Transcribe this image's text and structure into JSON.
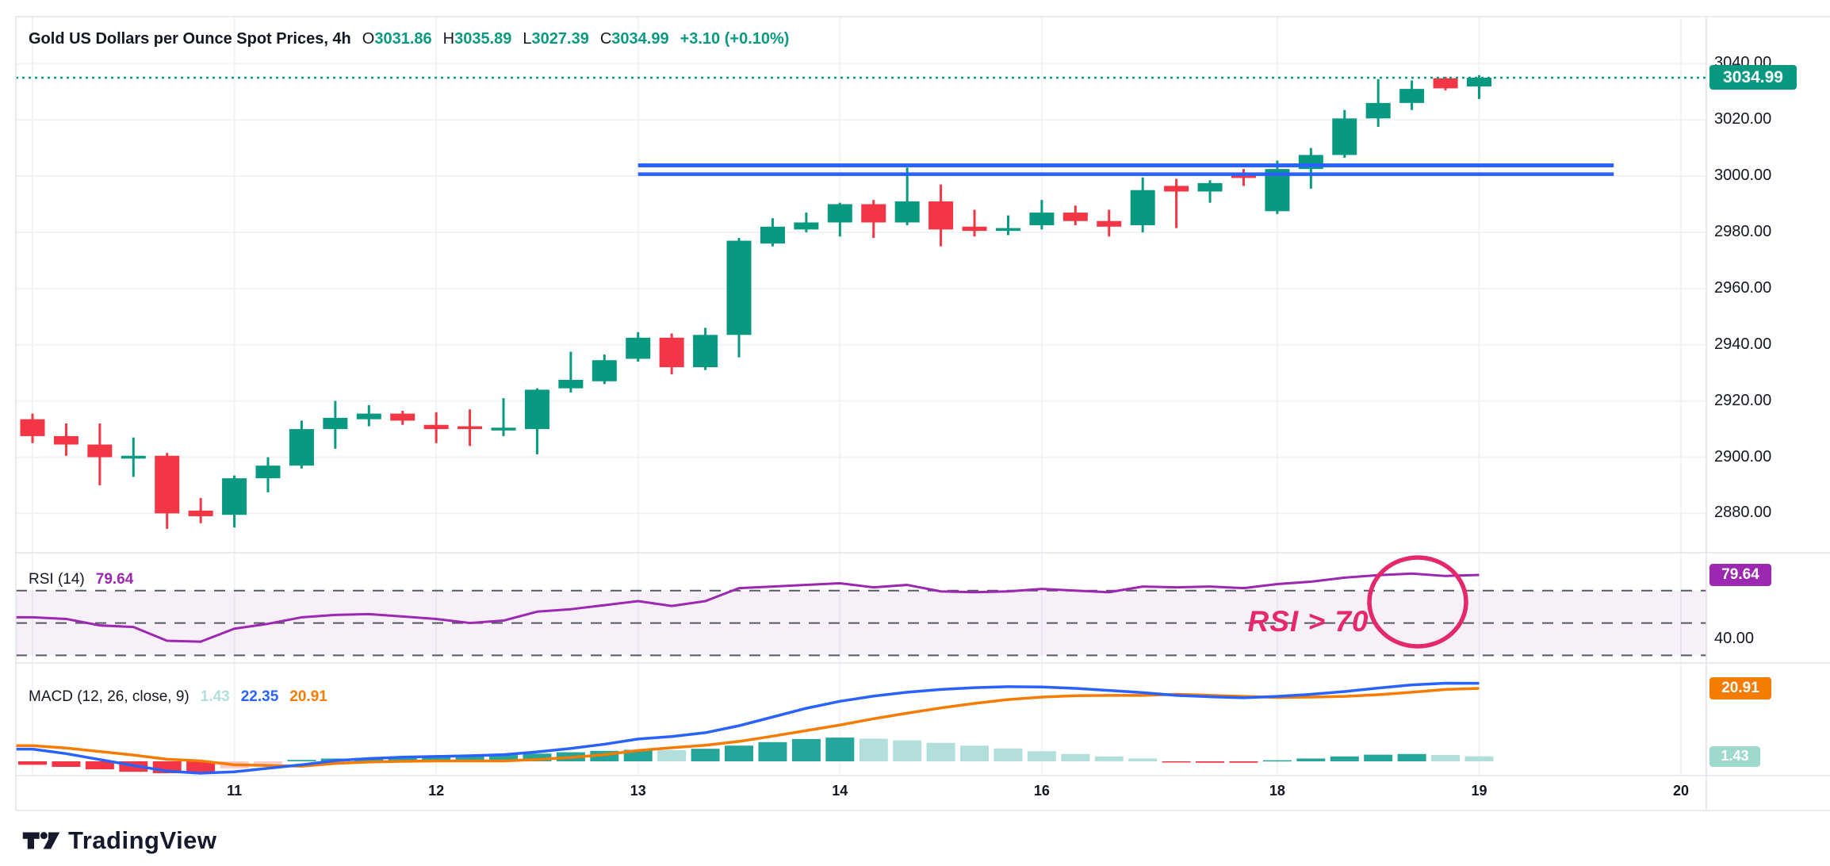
{
  "header": {
    "title": "Gold US Dollars per Ounce Spot Prices, 4h",
    "ohlc": {
      "o_label": "O",
      "o": "3031.86",
      "h_label": "H",
      "h": "3035.89",
      "l_label": "L",
      "l": "3027.39",
      "c_label": "C",
      "c": "3034.99",
      "change": "+3.10 (+0.10%)"
    }
  },
  "colors": {
    "up": "#089981",
    "down": "#F23645",
    "text": "#131722",
    "grid": "#F1F2F6",
    "border": "#E0E3EB",
    "value_green": "#089981",
    "resistance": "#2962FF",
    "last_price_line": "#089981",
    "price_badge": "#089981",
    "rsi_line": "#9C27B0",
    "rsi_badge": "#9C27B0",
    "rsi_band_fill": "rgba(149,66,183,0.08)",
    "rsi_dash": "#565A64",
    "macd_line": "#2962FF",
    "signal_line": "#F57C00",
    "hist_rise_pos": "#26A69A",
    "hist_fall_pos": "#B2DFDB",
    "hist_fall_neg": "#F23645",
    "hist_rise_neg": "#FCCBCD",
    "macd_badge": "#F57C00",
    "hist_badge": "#9FD9CE",
    "annotation": "#E4286B"
  },
  "chart_data": {
    "type": "candlestick",
    "title": "Gold US Dollars per Ounce Spot Prices",
    "interval": "4h",
    "grid": true,
    "price_axis": {
      "ticks": [
        "3040.00",
        "3020.00",
        "3000.00",
        "2980.00",
        "2960.00",
        "2940.00",
        "2920.00",
        "2900.00",
        "2880.00"
      ],
      "tick_values": [
        3040,
        3020,
        3000,
        2980,
        2960,
        2940,
        2920,
        2900,
        2880
      ],
      "current_price_label": "3034.99",
      "current_price_value": 3034.99
    },
    "time_axis": {
      "gridline_indices": [
        0,
        6,
        12,
        18,
        24,
        30,
        37,
        43,
        49
      ],
      "labels": [
        "",
        "11",
        "12",
        "13",
        "14",
        "16",
        "18",
        "19",
        "20"
      ]
    },
    "candles_ohlc": [
      [
        2913.5,
        2915.5,
        2905.0,
        2907.5
      ],
      [
        2907.5,
        2912.0,
        2900.5,
        2904.5
      ],
      [
        2904.5,
        2912.0,
        2890.0,
        2900.0
      ],
      [
        2899.5,
        2907.0,
        2893.0,
        2900.5
      ],
      [
        2900.5,
        2901.5,
        2874.5,
        2880.0
      ],
      [
        2881.0,
        2885.5,
        2876.5,
        2879.0
      ],
      [
        2879.5,
        2893.5,
        2875.0,
        2892.5
      ],
      [
        2892.5,
        2900.0,
        2887.5,
        2897.0
      ],
      [
        2897.0,
        2913.0,
        2896.0,
        2910.0
      ],
      [
        2910.0,
        2920.0,
        2903.0,
        2914.0
      ],
      [
        2913.5,
        2918.5,
        2911.0,
        2915.5
      ],
      [
        2915.5,
        2916.5,
        2911.5,
        2913.0
      ],
      [
        2911.5,
        2916.0,
        2905.0,
        2910.0
      ],
      [
        2911.0,
        2917.0,
        2904.0,
        2910.0
      ],
      [
        2909.5,
        2921.0,
        2907.5,
        2910.5
      ],
      [
        2910.0,
        2924.5,
        2901.0,
        2924.0
      ],
      [
        2924.5,
        2937.5,
        2923.0,
        2927.5
      ],
      [
        2927.0,
        2936.5,
        2926.0,
        2934.5
      ],
      [
        2935.0,
        2944.5,
        2934.0,
        2942.5
      ],
      [
        2942.5,
        2944.0,
        2929.5,
        2932.0
      ],
      [
        2932.0,
        2946.0,
        2931.0,
        2943.5
      ],
      [
        2943.5,
        2978.0,
        2935.5,
        2977.0
      ],
      [
        2976.0,
        2985.0,
        2975.0,
        2982.0
      ],
      [
        2981.0,
        2987.0,
        2980.0,
        2983.5
      ],
      [
        2983.5,
        2990.5,
        2978.5,
        2990.0
      ],
      [
        2990.0,
        2991.5,
        2978.0,
        2983.5
      ],
      [
        2983.5,
        3003.0,
        2982.5,
        2991.0
      ],
      [
        2991.0,
        2997.0,
        2975.0,
        2981.0
      ],
      [
        2982.0,
        2988.0,
        2978.5,
        2980.5
      ],
      [
        2980.5,
        2986.0,
        2979.0,
        2981.5
      ],
      [
        2982.5,
        2991.5,
        2981.0,
        2987.0
      ],
      [
        2987.0,
        2989.5,
        2982.5,
        2984.0
      ],
      [
        2984.0,
        2988.0,
        2978.5,
        2982.0
      ],
      [
        2982.5,
        2999.5,
        2980.0,
        2995.0
      ],
      [
        2996.5,
        2999.0,
        2981.5,
        2994.5
      ],
      [
        2994.5,
        2998.5,
        2990.5,
        2997.5
      ],
      [
        3000.3,
        3002.5,
        2996.5,
        2999.4
      ],
      [
        2987.5,
        3005.5,
        2986.5,
        3002.5
      ],
      [
        3002.5,
        3010.0,
        2995.5,
        3007.5
      ],
      [
        3007.5,
        3023.5,
        3006.5,
        3020.5
      ],
      [
        3020.5,
        3034.5,
        3017.5,
        3026.0
      ],
      [
        3026.0,
        3034.0,
        3023.5,
        3031.0
      ],
      [
        3034.8,
        3035.3,
        3030.5,
        3031.2
      ],
      [
        3031.86,
        3035.89,
        3027.39,
        3034.99
      ]
    ],
    "overlays": {
      "resistance_zone": {
        "price_high": 3003.8,
        "price_low": 3000.6,
        "start_index": 18,
        "end_index": 47
      },
      "last_price_line": {
        "price": 3034.99,
        "style": "dotted"
      }
    },
    "rsi": {
      "label": "RSI (14)",
      "value": "79.64",
      "levels": [
        70,
        50,
        30
      ],
      "axis_tick_label": "40.00",
      "axis_tick_value": 40,
      "values": [
        53.5,
        52.5,
        48.5,
        47.5,
        39.0,
        38.5,
        46.5,
        49.5,
        53.5,
        55.0,
        55.5,
        54.0,
        52.5,
        50.0,
        51.5,
        57.0,
        58.5,
        61.0,
        63.5,
        60.5,
        63.5,
        71.5,
        72.5,
        73.5,
        74.5,
        72.0,
        73.5,
        69.5,
        69.0,
        69.5,
        71.0,
        70.0,
        69.0,
        72.5,
        72.0,
        72.5,
        71.5,
        74.0,
        75.5,
        78.0,
        79.5,
        80.5,
        79.0,
        79.64
      ],
      "annotation": {
        "text": "RSI > 70"
      }
    },
    "macd": {
      "label": "MACD (12, 26, close, 9)",
      "hist_value": "1.43",
      "macd_value": "22.35",
      "signal_value": "20.91",
      "macd": [
        3.5,
        2.2,
        0.5,
        -1.2,
        -2.8,
        -3.4,
        -3.0,
        -2.0,
        -1.0,
        0.2,
        0.8,
        1.2,
        1.4,
        1.6,
        1.9,
        2.7,
        3.7,
        4.9,
        6.4,
        7.1,
        8.2,
        10.2,
        12.7,
        15.2,
        17.2,
        18.7,
        19.8,
        20.6,
        21.1,
        21.4,
        21.3,
        20.9,
        20.3,
        19.7,
        18.9,
        18.5,
        18.2,
        18.6,
        19.2,
        20.0,
        21.0,
        21.9,
        22.4,
        22.35
      ],
      "hist": [
        -1.0,
        -1.6,
        -2.3,
        -3.0,
        -3.4,
        -3.5,
        -2.0,
        -0.8,
        0.4,
        0.8,
        1.0,
        1.2,
        1.3,
        1.5,
        1.8,
        2.2,
        2.6,
        3.0,
        3.3,
        3.2,
        3.6,
        4.5,
        5.5,
        6.4,
        6.8,
        6.5,
        6.0,
        5.3,
        4.5,
        3.7,
        2.9,
        2.1,
        1.4,
        0.8,
        -0.3,
        -0.4,
        -0.4,
        0.3,
        0.8,
        1.4,
        1.9,
        2.1,
        1.8,
        1.43
      ]
    }
  },
  "footer": {
    "logo_text": "TradingView"
  }
}
